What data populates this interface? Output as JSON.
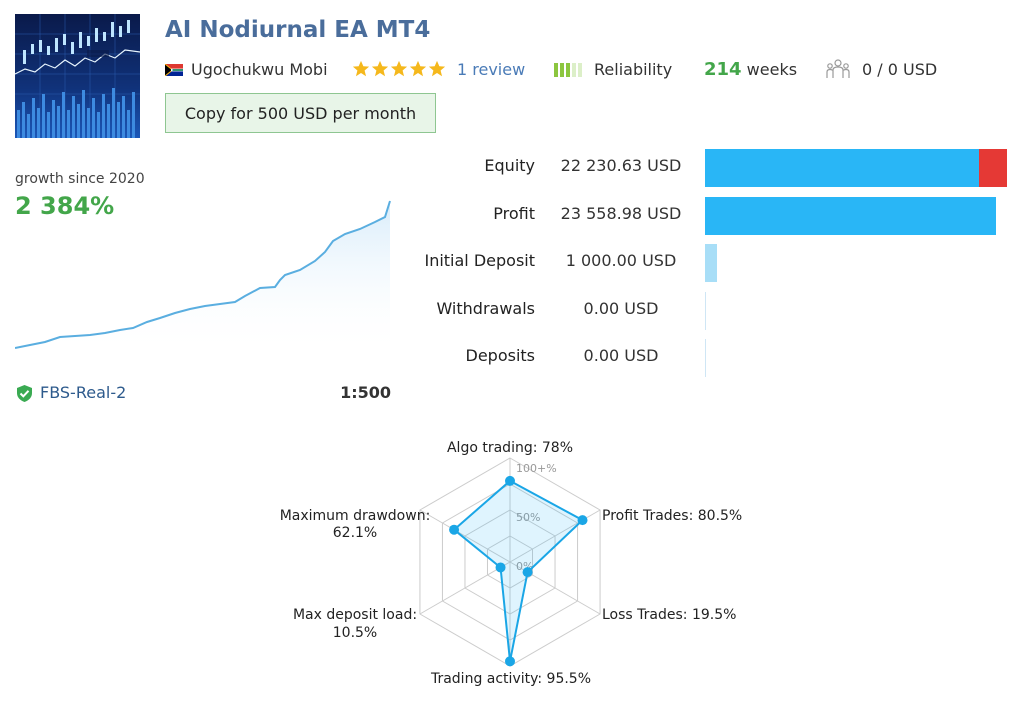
{
  "header": {
    "title": "AI Nodiurnal EA MT4",
    "author": "Ugochukwu Mobi",
    "rating_stars": 5,
    "reviews": "1 review",
    "reliability_label": "Reliability",
    "reliability_level": 3,
    "reliability_max": 5,
    "weeks_value": "214",
    "weeks_unit": "weeks",
    "subscribers_icon": "people-icon",
    "subscribers_funds": "0 / 0 USD",
    "copy_button": "Copy for 500 USD per month"
  },
  "colors": {
    "title": "#4a6d9b",
    "green": "#43a64a",
    "star": "#f5b81c",
    "bar": "#29b6f6",
    "bar_light": "#a8def7",
    "loss": "#e53935",
    "line": "#5aaee0"
  },
  "growth": {
    "label": "growth since 2020",
    "value": "2 384%",
    "server": "FBS-Real-2",
    "leverage": "1:500"
  },
  "stats": [
    {
      "label": "Equity",
      "value": "22 230.63 USD",
      "fraction": 0.908,
      "loss_fraction": 0.092
    },
    {
      "label": "Profit",
      "value": "23 558.98 USD",
      "fraction": 0.962
    },
    {
      "label": "Initial Deposit",
      "value": "1 000.00 USD",
      "fraction": 0.04,
      "light": true
    },
    {
      "label": "Withdrawals",
      "value": "0.00 USD",
      "fraction": 0
    },
    {
      "label": "Deposits",
      "value": "0.00 USD",
      "fraction": 0
    }
  ],
  "chart_data": {
    "type": "radar",
    "title": "",
    "ticks": [
      "100+%",
      "50%",
      "0%"
    ],
    "axes": [
      {
        "label": "Algo trading: 78%",
        "value": 78
      },
      {
        "label": "Profit Trades: 80.5%",
        "value": 80.5
      },
      {
        "label": "Loss Trades: 19.5%",
        "value": 19.5
      },
      {
        "label": "Trading activity: 95.5%",
        "value": 95.5
      },
      {
        "label": "Max deposit load:",
        "label2": "10.5%",
        "value": 10.5
      },
      {
        "label": "Maximum drawdown:",
        "label2": "62.1%",
        "value": 62.1
      }
    ]
  }
}
